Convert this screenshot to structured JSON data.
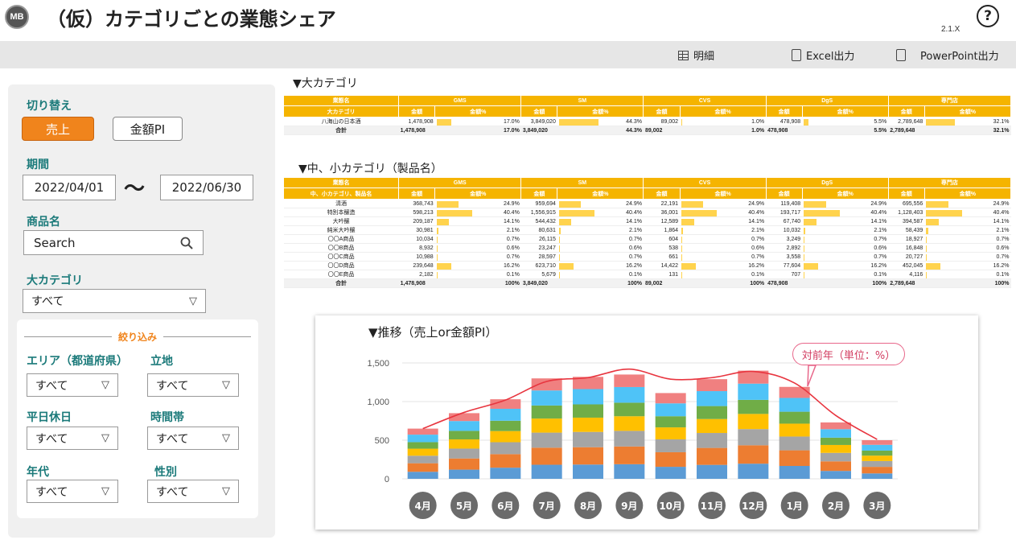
{
  "header": {
    "logo_text": "MB",
    "title": "（仮）カテゴリごとの業態シェア",
    "version": "2.1.X",
    "help_icon": "?"
  },
  "toolbar": {
    "detail_label": "明細",
    "excel_label": "Excel出力",
    "ppt_label": "PowerPoint出力"
  },
  "left_panel": {
    "switch_label": "切り替え",
    "sales_button": "売上",
    "pi_button": "金額PI",
    "period_label": "期間",
    "date_from": "2022/04/01",
    "tilde": "〜",
    "date_to": "2022/06/30",
    "product_label": "商品名",
    "search_placeholder": "Search",
    "category_label": "大カテゴリ",
    "category_value": "すべて",
    "filter_title": "絞り込み",
    "area_label": "エリア（都道府県）",
    "area_value": "すべて",
    "location_label": "立地",
    "location_value": "すべて",
    "weekday_label": "平日休日",
    "weekday_value": "すべて",
    "time_label": "時間帯",
    "time_value": "すべて",
    "age_label": "年代",
    "age_value": "すべて",
    "gender_label": "性別",
    "gender_value": "すべて",
    "caret": "▽"
  },
  "table1": {
    "section_title": "▼大カテゴリ",
    "corner_top": "業態名",
    "corner_sub": "大カテゴリ",
    "formats": [
      "GMS",
      "SM",
      "CVS",
      "DgS",
      "専門店"
    ],
    "sub_amount": "金額",
    "sub_pct": "金額%",
    "rows": [
      {
        "name": "八海山の日本酒",
        "cells": [
          [
            "1,478,908",
            "17.0%",
            17.0
          ],
          [
            "3,849,020",
            "44.3%",
            44.3
          ],
          [
            "89,002",
            "1.0%",
            1.0
          ],
          [
            "478,908",
            "5.5%",
            5.5
          ],
          [
            "2,789,648",
            "32.1%",
            32.1
          ]
        ]
      }
    ],
    "total": {
      "name": "合計",
      "cells": [
        [
          "1,478,908",
          "17.0%"
        ],
        [
          "3,849,020",
          "44.3%"
        ],
        [
          "89,002",
          "1.0%"
        ],
        [
          "478,908",
          "5.5%"
        ],
        [
          "2,789,648",
          "32.1%"
        ]
      ]
    }
  },
  "table2": {
    "section_title": "▼中、小カテゴリ（製品名）",
    "corner_top": "業態名",
    "corner_sub": "中、小カテゴリ、製品名",
    "formats": [
      "GMS",
      "SM",
      "CVS",
      "DgS",
      "専門店"
    ],
    "sub_amount": "金額",
    "sub_pct": "金額%",
    "rows": [
      {
        "name": "清酒",
        "cells": [
          [
            "368,743",
            "24.9%",
            24.9
          ],
          [
            "959,694",
            "24.9%",
            24.9
          ],
          [
            "22,191",
            "24.9%",
            24.9
          ],
          [
            "119,408",
            "24.9%",
            24.9
          ],
          [
            "695,556",
            "24.9%",
            24.9
          ]
        ]
      },
      {
        "name": "特別本醸造",
        "cells": [
          [
            "598,213",
            "40.4%",
            40.4
          ],
          [
            "1,556,915",
            "40.4%",
            40.4
          ],
          [
            "36,001",
            "40.4%",
            40.4
          ],
          [
            "193,717",
            "40.4%",
            40.4
          ],
          [
            "1,128,403",
            "40.4%",
            40.4
          ]
        ]
      },
      {
        "name": "大吟醸",
        "cells": [
          [
            "209,187",
            "14.1%",
            14.1
          ],
          [
            "544,432",
            "14.1%",
            14.1
          ],
          [
            "12,589",
            "14.1%",
            14.1
          ],
          [
            "67,740",
            "14.1%",
            14.1
          ],
          [
            "394,587",
            "14.1%",
            14.1
          ]
        ]
      },
      {
        "name": "純米大吟醸",
        "cells": [
          [
            "30,981",
            "2.1%",
            2.1
          ],
          [
            "80,631",
            "2.1%",
            2.1
          ],
          [
            "1,864",
            "2.1%",
            2.1
          ],
          [
            "10,032",
            "2.1%",
            2.1
          ],
          [
            "58,439",
            "2.1%",
            2.1
          ]
        ]
      },
      {
        "name": "〇〇A商品",
        "cells": [
          [
            "10,034",
            "0.7%",
            0.7
          ],
          [
            "26,115",
            "0.7%",
            0.7
          ],
          [
            "604",
            "0.7%",
            0.7
          ],
          [
            "3,249",
            "0.7%",
            0.7
          ],
          [
            "18,927",
            "0.7%",
            0.7
          ]
        ]
      },
      {
        "name": "〇〇B商品",
        "cells": [
          [
            "8,932",
            "0.6%",
            0.6
          ],
          [
            "23,247",
            "0.6%",
            0.6
          ],
          [
            "538",
            "0.6%",
            0.6
          ],
          [
            "2,892",
            "0.6%",
            0.6
          ],
          [
            "16,848",
            "0.6%",
            0.6
          ]
        ]
      },
      {
        "name": "〇〇C商品",
        "cells": [
          [
            "10,988",
            "0.7%",
            0.7
          ],
          [
            "28,597",
            "0.7%",
            0.7
          ],
          [
            "661",
            "0.7%",
            0.7
          ],
          [
            "3,558",
            "0.7%",
            0.7
          ],
          [
            "20,727",
            "0.7%",
            0.7
          ]
        ]
      },
      {
        "name": "〇〇D商品",
        "cells": [
          [
            "239,648",
            "16.2%",
            16.2
          ],
          [
            "623,710",
            "16.2%",
            16.2
          ],
          [
            "14,422",
            "16.2%",
            16.2
          ],
          [
            "77,604",
            "16.2%",
            16.2
          ],
          [
            "452,045",
            "16.2%",
            16.2
          ]
        ]
      },
      {
        "name": "〇〇E商品",
        "cells": [
          [
            "2,182",
            "0.1%",
            0.1
          ],
          [
            "5,679",
            "0.1%",
            0.1
          ],
          [
            "131",
            "0.1%",
            0.1
          ],
          [
            "707",
            "0.1%",
            0.1
          ],
          [
            "4,116",
            "0.1%",
            0.1
          ]
        ]
      }
    ],
    "total": {
      "name": "合計",
      "cells": [
        [
          "1,478,908",
          "100%"
        ],
        [
          "3,849,020",
          "100%"
        ],
        [
          "89,002",
          "100%"
        ],
        [
          "478,908",
          "100%"
        ],
        [
          "2,789,648",
          "100%"
        ]
      ]
    }
  },
  "chart": {
    "title": "▼推移（売上or金額PI）",
    "annotation": "対前年（単位：%）"
  },
  "chart_data": {
    "type": "bar",
    "stacked": true,
    "categories": [
      "4月",
      "5月",
      "6月",
      "7月",
      "8月",
      "9月",
      "10月",
      "11月",
      "12月",
      "1月",
      "2月",
      "3月"
    ],
    "ylim": [
      0,
      1600
    ],
    "yticks": [
      "0",
      "500",
      "1,000",
      "1,500"
    ],
    "colors": [
      "#5b9bd5",
      "#ed7d31",
      "#a5a5a5",
      "#ffc000",
      "#70ad47",
      "#4fc3f7",
      "#f08080"
    ],
    "totals": [
      650,
      850,
      1030,
      1300,
      1320,
      1350,
      1110,
      1290,
      1400,
      1190,
      730,
      500
    ],
    "segment_shares": [
      0.14,
      0.17,
      0.15,
      0.14,
      0.13,
      0.15,
      0.12
    ],
    "yoy_line": [
      650,
      860,
      1020,
      1260,
      1310,
      1420,
      1290,
      1310,
      1390,
      1240,
      820,
      510
    ]
  }
}
